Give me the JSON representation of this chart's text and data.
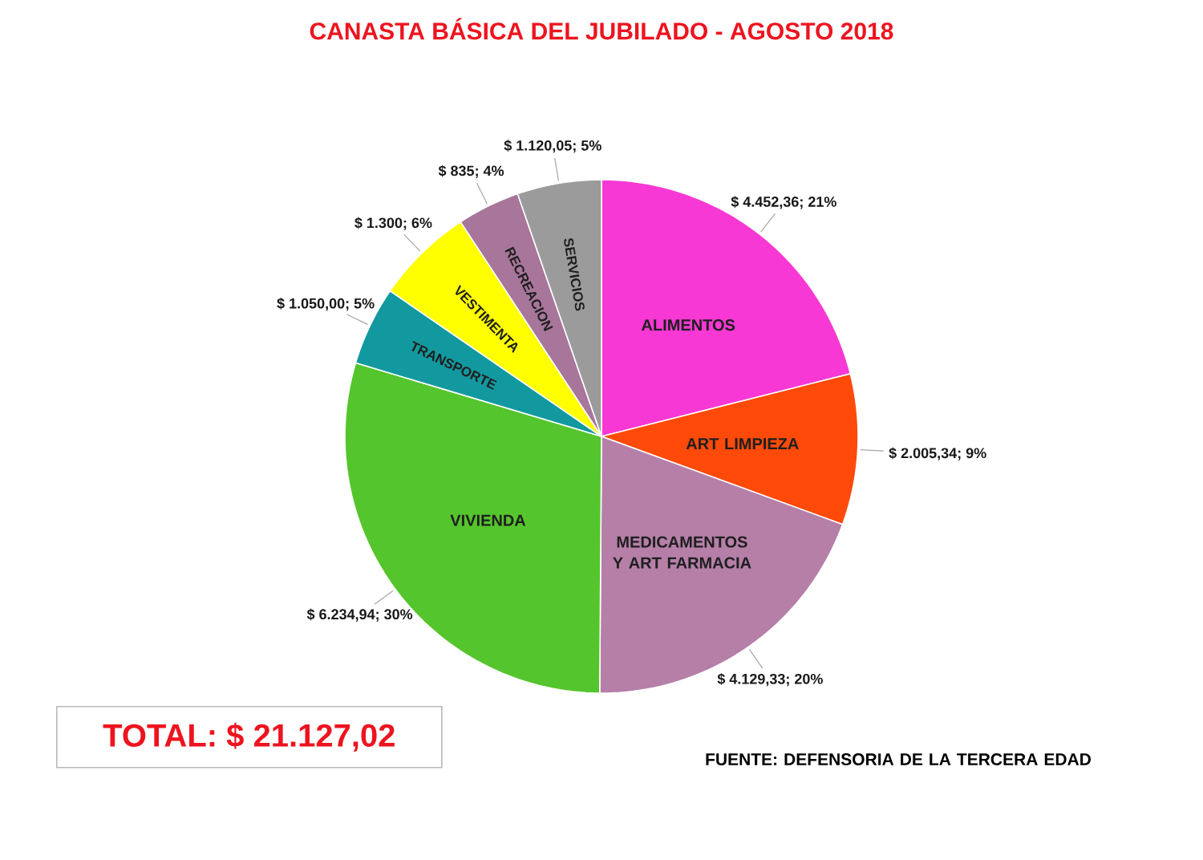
{
  "chart_data": {
    "type": "pie",
    "title": "CANASTA BÁSICA DEL JUBILADO - AGOSTO 2018",
    "categories": [
      "ALIMENTOS",
      "ART LIMPIEZA",
      "MEDICAMENTOS Y ART FARMACIA",
      "VIVIENDA",
      "TRANSPORTE",
      "VESTIMENTA",
      "RECREACION",
      "SERVICIOS"
    ],
    "values": [
      4452.36,
      2005.34,
      4129.33,
      6234.94,
      1050.0,
      1300,
      835,
      1120.05
    ],
    "colors": [
      "#f838d4",
      "#ff4a0a",
      "#b57fa8",
      "#55c52d",
      "#12999f",
      "#ffff00",
      "#a8759b",
      "#9b9b9b"
    ],
    "value_labels": [
      "$ 4.452,36; 21%",
      "$ 2.005,34; 9%",
      "$ 4.129,33; 20%",
      "$ 6.234,94; 30%",
      "$ 1.050,00; 5%",
      "$ 1.300; 6%",
      "$ 835; 4%",
      "$ 1.120,05; 5%"
    ],
    "annotations": [
      "TOTAL: $ 21.127,02",
      "FUENTE: DEFENSORIA DE LA TERCERA EDAD"
    ]
  }
}
